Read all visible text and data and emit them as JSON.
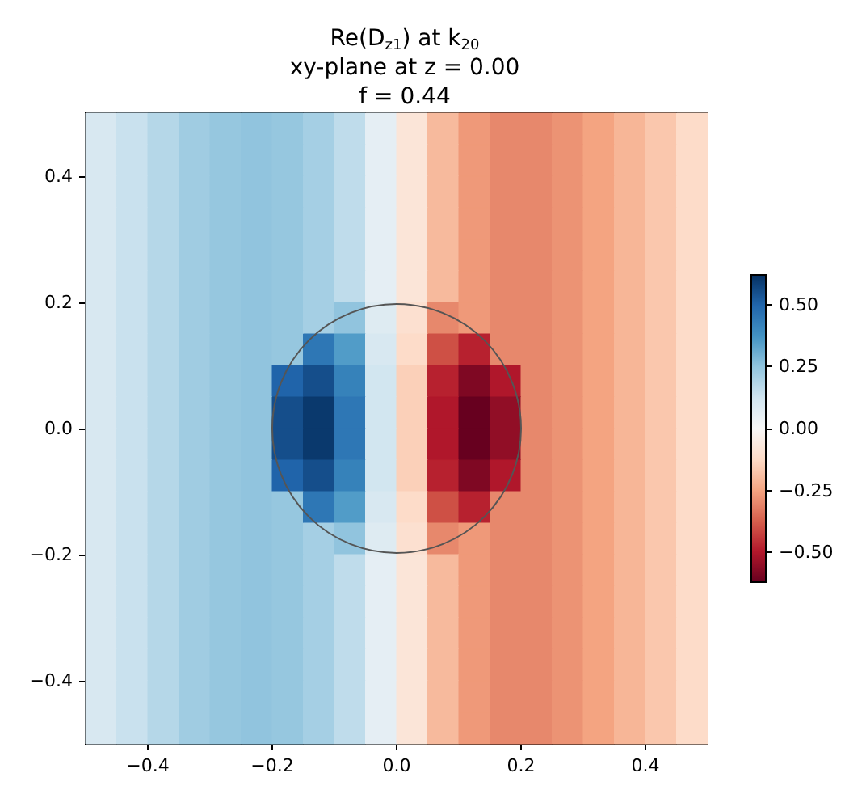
{
  "chart_data": {
    "type": "heatmap",
    "title": "Re(D$_{z1}$) at k$_{20}$",
    "subtitle": "xy-plane at z = 0.00\nf = 0.44",
    "x": [
      -0.475,
      -0.425,
      -0.375,
      -0.325,
      -0.275,
      -0.225,
      -0.175,
      -0.125,
      -0.075,
      -0.025,
      0.025,
      0.075,
      0.125,
      0.175,
      0.225,
      0.275,
      0.325,
      0.375,
      0.425,
      0.475
    ],
    "xlim": [
      -0.5,
      0.5
    ],
    "ylim": [
      -0.5,
      0.5
    ],
    "xticks": [
      {
        "value": -0.4,
        "label": "−0.4"
      },
      {
        "value": -0.2,
        "label": "−0.2"
      },
      {
        "value": 0,
        "label": "0.0"
      },
      {
        "value": 0.2,
        "label": "0.2"
      },
      {
        "value": 0.4,
        "label": "0.4"
      }
    ],
    "yticks": [
      {
        "value": -0.4,
        "label": "−0.4"
      },
      {
        "value": -0.2,
        "label": "−0.2"
      },
      {
        "value": 0,
        "label": "0.0"
      },
      {
        "value": 0.2,
        "label": "0.2"
      },
      {
        "value": 0.4,
        "label": "0.4"
      }
    ],
    "clim": [
      -0.62,
      0.62
    ],
    "cticks": [
      {
        "value": -0.5,
        "label": "−0.50"
      },
      {
        "value": -0.25,
        "label": "−0.25"
      },
      {
        "value": 0,
        "label": "0.00"
      },
      {
        "value": 0.25,
        "label": "0.25"
      },
      {
        "value": 0.5,
        "label": "0.50"
      }
    ],
    "cells": [
      [
        0.1,
        0.14,
        0.18,
        0.22,
        0.24,
        0.25,
        0.24,
        0.21,
        0.16,
        0.06,
        -0.08,
        -0.2,
        -0.27,
        -0.3,
        -0.3,
        -0.28,
        -0.25,
        -0.21,
        -0.17,
        -0.12
      ],
      [
        0.1,
        0.14,
        0.18,
        0.22,
        0.24,
        0.25,
        0.24,
        0.21,
        0.16,
        0.06,
        -0.08,
        -0.2,
        -0.27,
        -0.3,
        -0.3,
        -0.28,
        -0.25,
        -0.21,
        -0.17,
        -0.12
      ],
      [
        0.1,
        0.14,
        0.18,
        0.22,
        0.24,
        0.25,
        0.24,
        0.21,
        0.16,
        0.06,
        -0.08,
        -0.2,
        -0.27,
        -0.3,
        -0.3,
        -0.28,
        -0.25,
        -0.21,
        -0.17,
        -0.12
      ],
      [
        0.1,
        0.14,
        0.18,
        0.22,
        0.24,
        0.25,
        0.24,
        0.21,
        0.16,
        0.06,
        -0.08,
        -0.2,
        -0.27,
        -0.3,
        -0.3,
        -0.28,
        -0.25,
        -0.21,
        -0.17,
        -0.12
      ],
      [
        0.1,
        0.14,
        0.18,
        0.22,
        0.24,
        0.25,
        0.24,
        0.21,
        0.16,
        0.06,
        -0.08,
        -0.2,
        -0.27,
        -0.3,
        -0.3,
        -0.28,
        -0.25,
        -0.21,
        -0.17,
        -0.12
      ],
      [
        0.1,
        0.14,
        0.18,
        0.22,
        0.24,
        0.25,
        0.24,
        0.21,
        0.16,
        0.06,
        -0.08,
        -0.2,
        -0.27,
        -0.3,
        -0.3,
        -0.28,
        -0.25,
        -0.21,
        -0.17,
        -0.12
      ],
      [
        0.1,
        0.14,
        0.18,
        0.22,
        0.24,
        0.25,
        0.24,
        0.21,
        0.25,
        0.08,
        -0.1,
        -0.3,
        -0.27,
        -0.3,
        -0.3,
        -0.28,
        -0.25,
        -0.21,
        -0.17,
        -0.12
      ],
      [
        0.1,
        0.14,
        0.18,
        0.22,
        0.24,
        0.25,
        0.24,
        0.45,
        0.35,
        0.1,
        -0.12,
        -0.4,
        -0.48,
        -0.3,
        -0.3,
        -0.28,
        -0.25,
        -0.21,
        -0.17,
        -0.12
      ],
      [
        0.1,
        0.14,
        0.18,
        0.22,
        0.24,
        0.25,
        0.5,
        0.55,
        0.42,
        0.12,
        -0.15,
        -0.48,
        -0.58,
        -0.5,
        -0.3,
        -0.28,
        -0.25,
        -0.21,
        -0.17,
        -0.12
      ],
      [
        0.1,
        0.14,
        0.18,
        0.22,
        0.24,
        0.25,
        0.55,
        0.6,
        0.45,
        0.12,
        -0.15,
        -0.5,
        -0.62,
        -0.55,
        -0.3,
        -0.28,
        -0.25,
        -0.21,
        -0.17,
        -0.12
      ],
      [
        0.1,
        0.14,
        0.18,
        0.22,
        0.24,
        0.25,
        0.55,
        0.6,
        0.45,
        0.12,
        -0.15,
        -0.5,
        -0.62,
        -0.55,
        -0.3,
        -0.28,
        -0.25,
        -0.21,
        -0.17,
        -0.12
      ],
      [
        0.1,
        0.14,
        0.18,
        0.22,
        0.24,
        0.25,
        0.5,
        0.55,
        0.42,
        0.12,
        -0.15,
        -0.48,
        -0.58,
        -0.5,
        -0.3,
        -0.28,
        -0.25,
        -0.21,
        -0.17,
        -0.12
      ],
      [
        0.1,
        0.14,
        0.18,
        0.22,
        0.24,
        0.25,
        0.24,
        0.45,
        0.35,
        0.1,
        -0.12,
        -0.4,
        -0.48,
        -0.3,
        -0.3,
        -0.28,
        -0.25,
        -0.21,
        -0.17,
        -0.12
      ],
      [
        0.1,
        0.14,
        0.18,
        0.22,
        0.24,
        0.25,
        0.24,
        0.21,
        0.25,
        0.08,
        -0.1,
        -0.3,
        -0.27,
        -0.3,
        -0.3,
        -0.28,
        -0.25,
        -0.21,
        -0.17,
        -0.12
      ],
      [
        0.1,
        0.14,
        0.18,
        0.22,
        0.24,
        0.25,
        0.24,
        0.21,
        0.16,
        0.06,
        -0.08,
        -0.2,
        -0.27,
        -0.3,
        -0.3,
        -0.28,
        -0.25,
        -0.21,
        -0.17,
        -0.12
      ],
      [
        0.1,
        0.14,
        0.18,
        0.22,
        0.24,
        0.25,
        0.24,
        0.21,
        0.16,
        0.06,
        -0.08,
        -0.2,
        -0.27,
        -0.3,
        -0.3,
        -0.28,
        -0.25,
        -0.21,
        -0.17,
        -0.12
      ],
      [
        0.1,
        0.14,
        0.18,
        0.22,
        0.24,
        0.25,
        0.24,
        0.21,
        0.16,
        0.06,
        -0.08,
        -0.2,
        -0.27,
        -0.3,
        -0.3,
        -0.28,
        -0.25,
        -0.21,
        -0.17,
        -0.12
      ],
      [
        0.1,
        0.14,
        0.18,
        0.22,
        0.24,
        0.25,
        0.24,
        0.21,
        0.16,
        0.06,
        -0.08,
        -0.2,
        -0.27,
        -0.3,
        -0.3,
        -0.28,
        -0.25,
        -0.21,
        -0.17,
        -0.12
      ],
      [
        0.1,
        0.14,
        0.18,
        0.22,
        0.24,
        0.25,
        0.24,
        0.21,
        0.16,
        0.06,
        -0.08,
        -0.2,
        -0.27,
        -0.3,
        -0.3,
        -0.28,
        -0.25,
        -0.21,
        -0.17,
        -0.12
      ],
      [
        0.1,
        0.14,
        0.18,
        0.22,
        0.24,
        0.25,
        0.24,
        0.21,
        0.16,
        0.06,
        -0.08,
        -0.2,
        -0.27,
        -0.3,
        -0.3,
        -0.28,
        -0.25,
        -0.21,
        -0.17,
        -0.12
      ]
    ]
  }
}
